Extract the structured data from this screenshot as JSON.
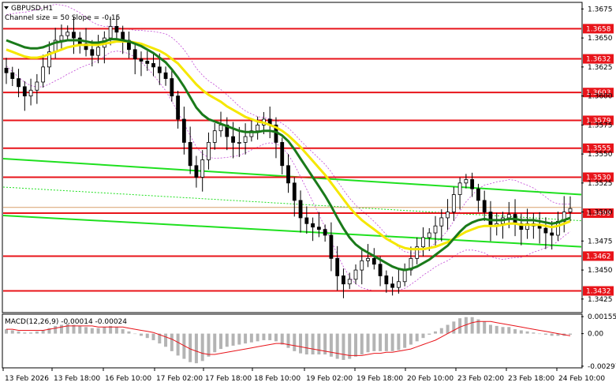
{
  "header": {
    "symbol": "GBPUSD,H1",
    "channel_info": "Channel size = 50 Slope = -0.15"
  },
  "macd_header": "MACD(12,26,9) -0.00014 -0.00024",
  "colors": {
    "level": "#e8141a",
    "ma_fast": "#f5e700",
    "ma_slow": "#1a7a1a",
    "channel": "#1fe01f",
    "bands": "#c24bd6",
    "candle": "#000000",
    "macd_hist": "#b4b4b4",
    "macd_signal": "#e8141a"
  },
  "chart_data": {
    "type": "candlestick",
    "title": "GBPUSD,H1",
    "x_tick_labels": [
      "13 Feb 2026",
      "13 Feb 18:00",
      "16 Feb 10:00",
      "17 Feb 02:00",
      "17 Feb 18:00",
      "18 Feb 10:00",
      "19 Feb 02:00",
      "19 Feb 18:00",
      "20 Feb 10:00",
      "23 Feb 02:00",
      "23 Feb 18:00",
      "24 Feb 10:00"
    ],
    "y_tick_labels": [
      "1.3675",
      "1.3650",
      "1.3625",
      "1.3600",
      "1.3575",
      "1.3550",
      "1.3525",
      "1.3500",
      "1.3475",
      "1.3450",
      "1.3425"
    ],
    "y_ticks": [
      1.3675,
      1.365,
      1.3625,
      1.36,
      1.3575,
      1.355,
      1.3525,
      1.35,
      1.3475,
      1.345,
      1.3425
    ],
    "ylim": [
      1.3414,
      1.368
    ],
    "levels": [
      {
        "label": "1.3658",
        "value": 1.3658
      },
      {
        "label": "1.3632",
        "value": 1.3632
      },
      {
        "label": "1.3603",
        "value": 1.3603
      },
      {
        "label": "1.3579",
        "value": 1.3579
      },
      {
        "label": "1.3555",
        "value": 1.3555
      },
      {
        "label": "1.3530",
        "value": 1.353
      },
      {
        "label": "1.3499",
        "value": 1.3499
      },
      {
        "label": "1.3462",
        "value": 1.3462
      },
      {
        "label": "1.3432",
        "value": 1.3432
      }
    ],
    "current_price": 1.3504,
    "closes": [
      1.362,
      1.3615,
      1.3608,
      1.36,
      1.3605,
      1.3612,
      1.3625,
      1.3638,
      1.3648,
      1.3652,
      1.3655,
      1.365,
      1.3645,
      1.364,
      1.3635,
      1.3642,
      1.365,
      1.366,
      1.3655,
      1.3648,
      1.364,
      1.3632,
      1.363,
      1.3628,
      1.3625,
      1.362,
      1.3615,
      1.36,
      1.358,
      1.356,
      1.354,
      1.353,
      1.3545,
      1.356,
      1.357,
      1.3575,
      1.3565,
      1.356,
      1.356,
      1.3565,
      1.357,
      1.3575,
      1.358,
      1.3575,
      1.356,
      1.354,
      1.3525,
      1.351,
      1.3495,
      1.349,
      1.3487,
      1.3485,
      1.348,
      1.346,
      1.3445,
      1.3438,
      1.3442,
      1.345,
      1.3458,
      1.346,
      1.3455,
      1.3445,
      1.3438,
      1.3435,
      1.344,
      1.345,
      1.346,
      1.347,
      1.3478,
      1.3482,
      1.3488,
      1.3495,
      1.35,
      1.3515,
      1.3525,
      1.3528,
      1.352,
      1.351,
      1.35,
      1.3488,
      1.349,
      1.3495,
      1.3498,
      1.349,
      1.3485,
      1.349,
      1.3488,
      1.3486,
      1.3482,
      1.348,
      1.3492,
      1.35,
      1.3503
    ],
    "ma_slow": [
      1.3648,
      1.3646,
      1.3644,
      1.3642,
      1.3641,
      1.3641,
      1.3642,
      1.3644,
      1.3646,
      1.3647,
      1.3648,
      1.3648,
      1.3648,
      1.3647,
      1.3646,
      1.3646,
      1.3647,
      1.3649,
      1.3649,
      1.3648,
      1.3647,
      1.3645,
      1.3643,
      1.364,
      1.3637,
      1.3633,
      1.3629,
      1.3623,
      1.3616,
      1.3608,
      1.3599,
      1.359,
      1.3584,
      1.358,
      1.3578,
      1.3576,
      1.3574,
      1.3572,
      1.357,
      1.3569,
      1.3569,
      1.3569,
      1.357,
      1.357,
      1.3569,
      1.3566,
      1.3561,
      1.3554,
      1.3546,
      1.3538,
      1.353,
      1.3522,
      1.3514,
      1.3505,
      1.3495,
      1.3486,
      1.3478,
      1.3472,
      1.3468,
      1.3465,
      1.3462,
      1.3459,
      1.3456,
      1.3453,
      1.3451,
      1.345,
      1.3451,
      1.3453,
      1.3456,
      1.3459,
      1.3463,
      1.3467,
      1.3471,
      1.3477,
      1.3483,
      1.3488,
      1.3491,
      1.3493,
      1.3494,
      1.3493,
      1.3493,
      1.3493,
      1.3494,
      1.3494,
      1.3493,
      1.3493,
      1.3493,
      1.3492,
      1.3491,
      1.349,
      1.3491,
      1.3493,
      1.3495
    ],
    "ma_fast": [
      1.364,
      1.3638,
      1.3636,
      1.3634,
      1.3633,
      1.3633,
      1.3634,
      1.3636,
      1.3638,
      1.364,
      1.3642,
      1.3643,
      1.3644,
      1.3644,
      1.3644,
      1.3644,
      1.3645,
      1.3646,
      1.3647,
      1.3647,
      1.3647,
      1.3646,
      1.3645,
      1.3643,
      1.3641,
      1.3639,
      1.3636,
      1.3632,
      1.3628,
      1.3622,
      1.3616,
      1.361,
      1.3605,
      1.3601,
      1.3598,
      1.3595,
      1.3591,
      1.3588,
      1.3585,
      1.3582,
      1.358,
      1.3578,
      1.3577,
      1.3575,
      1.3573,
      1.357,
      1.3566,
      1.3561,
      1.3556,
      1.355,
      1.3544,
      1.3538,
      1.3532,
      1.3525,
      1.3518,
      1.3511,
      1.3504,
      1.3498,
      1.3493,
      1.3489,
      1.3485,
      1.3481,
      1.3477,
      1.3474,
      1.3471,
      1.3469,
      1.3468,
      1.3468,
      1.3468,
      1.3469,
      1.347,
      1.3472,
      1.3474,
      1.3477,
      1.348,
      1.3483,
      1.3485,
      1.3487,
      1.3488,
      1.3488,
      1.3488,
      1.3489,
      1.349,
      1.349,
      1.3489,
      1.3489,
      1.3489,
      1.3489,
      1.3488,
      1.3487,
      1.3488,
      1.349,
      1.3492
    ],
    "channel_lines": [
      {
        "name": "channel-upper",
        "start": 1.3546,
        "end": 1.3515
      },
      {
        "name": "channel-lower",
        "start": 1.3497,
        "end": 1.347
      }
    ],
    "macd": {
      "ylim": [
        -0.00305,
        0.0017
      ],
      "y_tick_labels": [
        "0.00155",
        "0.00",
        "-0.00297"
      ],
      "y_ticks": [
        0.00155,
        0.0,
        -0.00297
      ],
      "histogram": [
        0.0004,
        0.0003,
        0.0002,
        0.0001,
        0.0001,
        0.0002,
        0.0003,
        0.0005,
        0.0007,
        0.0008,
        0.0009,
        0.0008,
        0.0007,
        0.0006,
        0.0005,
        0.0005,
        0.0006,
        0.0007,
        0.0006,
        0.0004,
        0.0002,
        0.0,
        -0.0002,
        -0.0004,
        -0.0006,
        -0.0009,
        -0.0012,
        -0.0016,
        -0.002,
        -0.0023,
        -0.0026,
        -0.0027,
        -0.0025,
        -0.0021,
        -0.0017,
        -0.0014,
        -0.0012,
        -0.0011,
        -0.001,
        -0.0009,
        -0.0008,
        -0.0007,
        -0.0006,
        -0.0006,
        -0.0007,
        -0.001,
        -0.0013,
        -0.0016,
        -0.0018,
        -0.0019,
        -0.0019,
        -0.0019,
        -0.0019,
        -0.0021,
        -0.0023,
        -0.0024,
        -0.0023,
        -0.0021,
        -0.0019,
        -0.0017,
        -0.0016,
        -0.0016,
        -0.0016,
        -0.0016,
        -0.0015,
        -0.0013,
        -0.001,
        -0.0007,
        -0.0004,
        -0.0001,
        0.0002,
        0.0005,
        0.0008,
        0.0011,
        0.0014,
        0.0015,
        0.0015,
        0.0013,
        0.0011,
        0.0008,
        0.0007,
        0.0006,
        0.0006,
        0.0004,
        0.0003,
        0.0002,
        0.0001,
        0.0,
        -0.0001,
        -0.0002,
        -0.0002,
        -0.0002,
        -0.0001
      ],
      "signal": [
        0.0004,
        0.0004,
        0.0003,
        0.0003,
        0.0003,
        0.0003,
        0.0003,
        0.0004,
        0.0005,
        0.0006,
        0.0007,
        0.0007,
        0.0007,
        0.0007,
        0.0007,
        0.0006,
        0.0006,
        0.0006,
        0.0006,
        0.0006,
        0.0005,
        0.0004,
        0.0003,
        0.0002,
        0.0001,
        -0.0001,
        -0.0003,
        -0.0005,
        -0.0008,
        -0.0011,
        -0.0014,
        -0.0016,
        -0.0018,
        -0.0019,
        -0.0019,
        -0.0018,
        -0.0017,
        -0.0016,
        -0.0015,
        -0.0014,
        -0.0013,
        -0.0012,
        -0.0011,
        -0.001,
        -0.0009,
        -0.0009,
        -0.001,
        -0.0011,
        -0.0012,
        -0.0013,
        -0.0014,
        -0.0015,
        -0.0016,
        -0.0017,
        -0.0018,
        -0.0019,
        -0.002,
        -0.002,
        -0.002,
        -0.0019,
        -0.0018,
        -0.0018,
        -0.0017,
        -0.0017,
        -0.0016,
        -0.0015,
        -0.0014,
        -0.0012,
        -0.001,
        -0.0008,
        -0.0006,
        -0.0003,
        0.0,
        0.0003,
        0.0006,
        0.0008,
        0.001,
        0.0011,
        0.0011,
        0.0011,
        0.001,
        0.0009,
        0.0008,
        0.0007,
        0.0006,
        0.0005,
        0.0004,
        0.0003,
        0.0002,
        0.0001,
        0.0,
        -0.0001,
        -0.0002
      ]
    }
  }
}
